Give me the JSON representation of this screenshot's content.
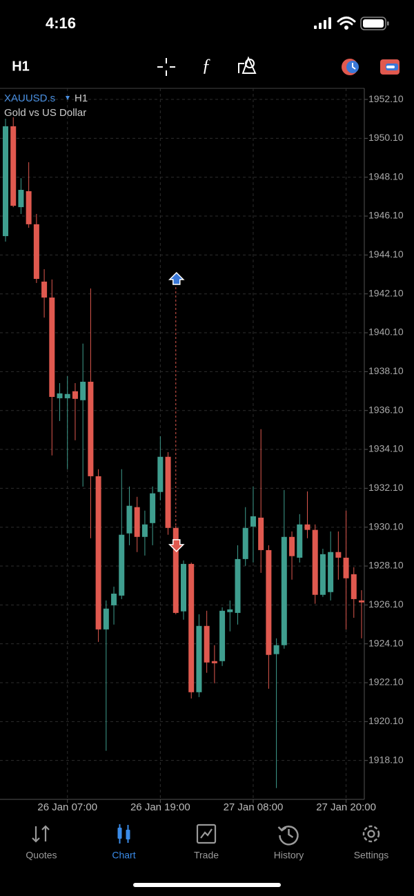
{
  "status_bar": {
    "time": "4:16"
  },
  "toolbar": {
    "timeframe": "H1"
  },
  "chart_data": {
    "type": "candlestick",
    "symbol": "XAUUSD.s",
    "timeframe": "H1",
    "subtitle": "Gold vs US Dollar",
    "categories": [
      null,
      null,
      null,
      null,
      null,
      null,
      null,
      null,
      "26 Jan 07:00",
      null,
      null,
      null,
      null,
      null,
      null,
      null,
      null,
      null,
      null,
      null,
      "26 Jan 19:00",
      null,
      null,
      null,
      null,
      null,
      null,
      null,
      null,
      null,
      null,
      null,
      "27 Jan 08:00",
      null,
      null,
      null,
      null,
      null,
      null,
      null,
      null,
      null,
      null,
      null,
      "27 Jan 20:00",
      null,
      null
    ],
    "open": [
      1945.07,
      1950.72,
      1946.56,
      1947.38,
      1945.68,
      1942.73,
      1941.91,
      1936.73,
      1936.73,
      1937.09,
      1936.63,
      1937.58,
      1932.72,
      1924.84,
      1926.08,
      1926.58,
      1929.78,
      1931.13,
      1929.6,
      1930.31,
      1931.91,
      1933.72,
      1930.06,
      1925.77,
      1928.21,
      1921.61,
      1925.02,
      1923.21,
      1923.21,
      1925.73,
      1925.69,
      1928.46,
      1930.13,
      1930.59,
      1928.92,
      1923.57,
      1924.03,
      1929.6,
      1928.53,
      1930.24,
      1929.96,
      1926.62,
      1926.76,
      1928.82,
      1928.53,
      1927.68,
      1926.33
    ],
    "high": [
      1951.11,
      1951.18,
      1948.05,
      1948.87,
      1946.21,
      1943.37,
      1942.84,
      1937.51,
      1937.87,
      1937.51,
      1939.54,
      1942.38,
      1933.08,
      1926.33,
      1927.04,
      1933.08,
      1932.19,
      1931.66,
      1930.95,
      1932.19,
      1934.78,
      1933.96,
      1930.17,
      1928.39,
      1928.28,
      1925.62,
      1925.8,
      1924.03,
      1925.98,
      1926.33,
      1929.17,
      1931.13,
      1932.19,
      1935.14,
      1929.17,
      1924.38,
      1932.01,
      1929.88,
      1930.77,
      1931.94,
      1930.24,
      1928.99,
      1929.88,
      1929.88,
      1930.95,
      1928.04,
      1926.86
    ],
    "low": [
      1944.79,
      1946.56,
      1946.21,
      1945.5,
      1942.66,
      1940.88,
      1933.79,
      1935.56,
      1933.08,
      1934.57,
      1932.19,
      1929.53,
      1924.2,
      1918.6,
      1925.09,
      1926.4,
      1929.17,
      1928.82,
      1928.64,
      1929.17,
      1931.48,
      1929.71,
      1925.62,
      1925.34,
      1921.29,
      1921.36,
      1922.61,
      1922.07,
      1922.96,
      1924.74,
      1925.09,
      1928.11,
      1928.28,
      1927.75,
      1921.79,
      1916.68,
      1923.85,
      1927.4,
      1928.28,
      1929.53,
      1926.16,
      1926.51,
      1926.33,
      1927.4,
      1924.84,
      1925.44,
      1924.38
    ],
    "close": [
      1950.72,
      1946.63,
      1947.45,
      1945.68,
      1942.87,
      1941.91,
      1936.8,
      1936.98,
      1936.95,
      1936.7,
      1937.58,
      1932.72,
      1924.84,
      1925.91,
      1926.68,
      1929.71,
      1931.2,
      1929.6,
      1930.24,
      1931.84,
      1933.72,
      1930.06,
      1925.69,
      1928.21,
      1921.61,
      1925.02,
      1923.14,
      1923.1,
      1925.8,
      1925.87,
      1928.46,
      1930.06,
      1930.66,
      1928.92,
      1923.53,
      1924.03,
      1929.6,
      1928.61,
      1930.24,
      1929.96,
      1926.62,
      1928.71,
      1928.82,
      1928.53,
      1927.47,
      1926.4,
      1926.23
    ],
    "up_color": "#3f9e8f",
    "down_color": "#e0594f",
    "ylim": [
      1916.1,
      1952.67
    ],
    "yticks": [
      {
        "value": 1918.1,
        "label": "1918.10"
      },
      {
        "value": 1920.1,
        "label": "1920.10"
      },
      {
        "value": 1922.1,
        "label": "1922.10"
      },
      {
        "value": 1924.1,
        "label": "1924.10"
      },
      {
        "value": 1926.1,
        "label": "1926.10"
      },
      {
        "value": 1928.1,
        "label": "1928.10"
      },
      {
        "value": 1930.1,
        "label": "1930.10"
      },
      {
        "value": 1932.1,
        "label": "1932.10"
      },
      {
        "value": 1934.1,
        "label": "1934.10"
      },
      {
        "value": 1936.1,
        "label": "1936.10"
      },
      {
        "value": 1938.1,
        "label": "1938.10"
      },
      {
        "value": 1940.1,
        "label": "1940.10"
      },
      {
        "value": 1942.1,
        "label": "1942.10"
      },
      {
        "value": 1944.1,
        "label": "1944.10"
      },
      {
        "value": 1946.1,
        "label": "1946.10"
      },
      {
        "value": 1948.1,
        "label": "1948.10"
      },
      {
        "value": 1950.1,
        "label": "1950.10"
      },
      {
        "value": 1952.1,
        "label": "1952.10"
      }
    ],
    "grid": true,
    "trade_arrows": [
      {
        "index": 22,
        "price": 1942.87,
        "direction": "up",
        "color": "#3a78d8"
      },
      {
        "index": 22,
        "price": 1929.17,
        "direction": "down",
        "color": "#e0594f"
      }
    ]
  },
  "tab_bar": {
    "tabs": [
      {
        "label": "Quotes"
      },
      {
        "label": "Chart"
      },
      {
        "label": "Trade"
      },
      {
        "label": "History"
      },
      {
        "label": "Settings"
      }
    ],
    "active": 1,
    "active_color": "#3a8be8",
    "color": "#9a9a9a"
  }
}
